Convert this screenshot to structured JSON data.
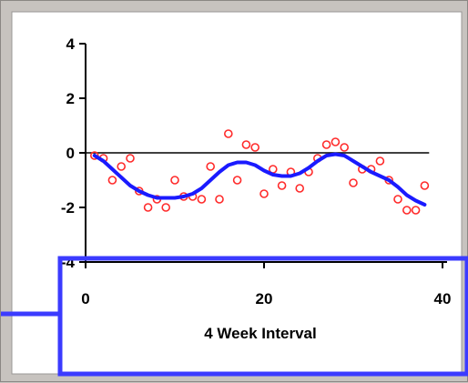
{
  "chart_data": {
    "type": "scatter",
    "title": "",
    "xlabel": "4 Week Interval",
    "ylabel": "",
    "xlim": [
      0,
      40
    ],
    "ylim": [
      -4,
      4
    ],
    "x_ticks": [
      0,
      20,
      40
    ],
    "y_ticks": [
      4,
      2,
      0,
      -2,
      -4
    ],
    "y_tick_labels": [
      "4",
      "2",
      "0",
      "-2",
      "-4"
    ],
    "x_tick_labels": [
      "0",
      "20",
      "40"
    ],
    "reference_line_y": 0,
    "grid": false,
    "colors": {
      "points": "#ff2a2a",
      "smooth": "#1a1aff",
      "plot_bg": "#ffffff",
      "window_bg": "#c7c3bf",
      "highlight": "#3b3bff",
      "reference": "#000000"
    },
    "series": [
      {
        "kind": "points",
        "x": [
          1,
          2,
          3,
          4,
          5,
          6,
          7,
          8,
          9,
          10,
          11,
          12,
          13,
          14,
          15,
          16,
          17,
          18,
          19,
          20,
          21,
          22,
          23,
          24,
          25,
          26,
          27,
          28,
          29,
          30,
          31,
          32,
          33,
          34,
          35,
          36,
          37,
          38
        ],
        "y": [
          -0.1,
          -0.2,
          -1.0,
          -0.5,
          -0.2,
          -1.4,
          -2.0,
          -1.7,
          -2.0,
          -1.0,
          -1.6,
          -1.6,
          -1.7,
          -0.5,
          -1.7,
          0.7,
          -1.0,
          0.3,
          0.2,
          -1.5,
          -0.6,
          -1.2,
          -0.7,
          -1.3,
          -0.7,
          -0.2,
          0.3,
          0.4,
          0.2,
          -1.1,
          -0.6,
          -0.6,
          -0.3,
          -1.0,
          -1.7,
          -2.1,
          -2.1,
          -1.2
        ]
      },
      {
        "kind": "smooth",
        "x": [
          1,
          2,
          3,
          4,
          5,
          6,
          7,
          8,
          9,
          10,
          11,
          12,
          13,
          14,
          15,
          16,
          17,
          18,
          19,
          20,
          21,
          22,
          23,
          24,
          25,
          26,
          27,
          28,
          29,
          30,
          31,
          32,
          33,
          34,
          35,
          36,
          37,
          38
        ],
        "y": [
          -0.1,
          -0.3,
          -0.6,
          -0.9,
          -1.2,
          -1.4,
          -1.55,
          -1.65,
          -1.65,
          -1.65,
          -1.6,
          -1.5,
          -1.3,
          -1.0,
          -0.7,
          -0.45,
          -0.35,
          -0.35,
          -0.45,
          -0.65,
          -0.8,
          -0.85,
          -0.85,
          -0.75,
          -0.55,
          -0.3,
          -0.1,
          -0.05,
          -0.1,
          -0.3,
          -0.5,
          -0.7,
          -0.85,
          -1.0,
          -1.25,
          -1.55,
          -1.75,
          -1.9
        ]
      }
    ]
  }
}
